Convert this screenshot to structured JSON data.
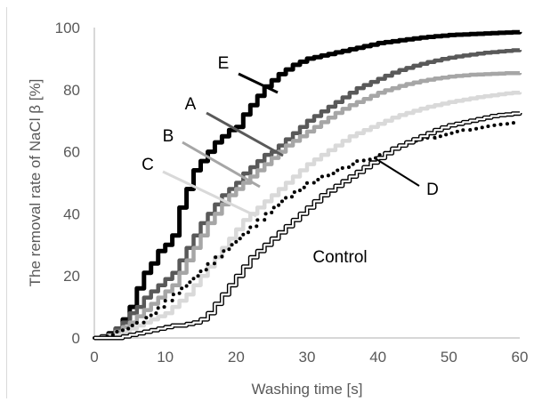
{
  "chart_data": {
    "type": "line",
    "title": "",
    "xlabel": "Washing time [s]",
    "ylabel": "The removal rate of NaCl β [%]",
    "xlim": [
      0,
      60
    ],
    "ylim": [
      0,
      100
    ],
    "x_ticks": [
      "0",
      "10",
      "20",
      "30",
      "40",
      "50",
      "60"
    ],
    "y_ticks": [
      "0",
      "20",
      "40",
      "60",
      "80",
      "100"
    ],
    "grid": false,
    "x": [
      0,
      1,
      2,
      3,
      4,
      5,
      6,
      7,
      8,
      9,
      10,
      11,
      12,
      13,
      14,
      15,
      16,
      17,
      18,
      19,
      20,
      21,
      22,
      23,
      24,
      25,
      26,
      27,
      28,
      29,
      30,
      31,
      32,
      33,
      34,
      35,
      36,
      37,
      38,
      39,
      40,
      41,
      42,
      43,
      44,
      45,
      46,
      47,
      48,
      49,
      50,
      51,
      52,
      53,
      54,
      55,
      56,
      57,
      58,
      59,
      60
    ],
    "series": [
      {
        "name": "E",
        "color": "#000000",
        "style": "solid-thick",
        "values": [
          0,
          0.5,
          1.5,
          3,
          6,
          10,
          16,
          21,
          24,
          28,
          30,
          33,
          42,
          48,
          54,
          57,
          60,
          63,
          65,
          67,
          68,
          72,
          75,
          78,
          81,
          83,
          85,
          86.5,
          88,
          89,
          90,
          90.5,
          91,
          91.5,
          92,
          92.5,
          93,
          93.5,
          94,
          94.5,
          95,
          95.3,
          95.6,
          95.9,
          96.2,
          96.5,
          96.8,
          97,
          97.2,
          97.4,
          97.6,
          97.7,
          97.8,
          97.9,
          98,
          98.1,
          98.2,
          98.3,
          98.4,
          98.5,
          98.6
        ]
      },
      {
        "name": "A",
        "color": "#595959",
        "style": "solid",
        "values": [
          0,
          0.3,
          1,
          3,
          5,
          8,
          10,
          13,
          15,
          17,
          19,
          21,
          25,
          29,
          33,
          37,
          40,
          43,
          46,
          48,
          50,
          53,
          55,
          57,
          59,
          60,
          62,
          64,
          66,
          68,
          70,
          71.5,
          73,
          74.5,
          76,
          77.5,
          79,
          80.5,
          81.5,
          82.5,
          83.5,
          84.5,
          85.5,
          86.3,
          87,
          87.7,
          88.3,
          88.9,
          89.4,
          89.9,
          90.3,
          90.7,
          91,
          91.3,
          91.6,
          91.9,
          92.1,
          92.3,
          92.5,
          92.7,
          92.8
        ]
      },
      {
        "name": "B",
        "color": "#a6a6a6",
        "style": "solid",
        "values": [
          0,
          0.2,
          0.8,
          2,
          3.5,
          5,
          7,
          9,
          11,
          13,
          15,
          17,
          21,
          25,
          29,
          33,
          37,
          40,
          43,
          46,
          48,
          50,
          52,
          54,
          56,
          58,
          60,
          62,
          63.5,
          65,
          66.5,
          68,
          69.5,
          71,
          72.5,
          73.8,
          75,
          76,
          77,
          78,
          79,
          79.8,
          80.5,
          81.2,
          81.8,
          82.3,
          82.8,
          83.2,
          83.6,
          83.9,
          84.2,
          84.4,
          84.6,
          84.8,
          84.9,
          85,
          85.1,
          85.2,
          85.3,
          85.3,
          85.4
        ]
      },
      {
        "name": "C",
        "color": "#d9d9d9",
        "style": "solid",
        "values": [
          0,
          0.2,
          0.5,
          1,
          2,
          3,
          4,
          5,
          6,
          7,
          8,
          10,
          12,
          14,
          17,
          20,
          23,
          26,
          29,
          32,
          35,
          38,
          40,
          42,
          44,
          46,
          48,
          50,
          52,
          54,
          56,
          57.5,
          59,
          60.5,
          62,
          63.5,
          65,
          66,
          67,
          68,
          69,
          70,
          71,
          71.8,
          72.5,
          73.2,
          73.9,
          74.5,
          75,
          75.5,
          76,
          76.4,
          76.8,
          77.2,
          77.6,
          77.9,
          78.2,
          78.5,
          78.8,
          79,
          79.2
        ]
      },
      {
        "name": "D",
        "color": "#000000",
        "style": "dotted",
        "values": [
          0,
          0.5,
          1,
          2,
          3,
          4,
          5,
          6.5,
          8,
          10,
          12,
          14,
          16,
          18,
          20,
          22,
          24,
          26,
          28,
          30,
          32,
          34,
          36,
          38,
          40,
          42,
          44,
          45.5,
          47,
          48.5,
          50,
          51,
          52,
          53,
          54,
          55,
          56,
          57,
          57.5,
          58,
          59,
          60,
          61,
          62,
          63,
          63.5,
          64,
          64.5,
          65,
          65.5,
          66,
          66.5,
          67,
          67.4,
          67.8,
          68.2,
          68.5,
          68.8,
          69,
          69.3,
          69.5
        ]
      },
      {
        "name": "Control",
        "color": "#000000",
        "style": "double",
        "values": [
          0,
          0,
          0,
          0,
          0.5,
          1,
          1.5,
          2,
          2.5,
          3,
          3.5,
          4,
          4,
          4.5,
          5,
          6,
          8,
          11,
          14,
          17,
          20,
          23,
          26,
          28,
          30,
          32,
          34,
          36,
          38,
          40,
          42,
          44,
          46,
          47.5,
          49,
          50.5,
          52,
          53.5,
          55,
          56.5,
          58,
          59.5,
          61,
          62,
          63,
          64,
          65,
          66,
          67,
          67.8,
          68.5,
          69,
          69.5,
          70,
          70.5,
          71,
          71.5,
          71.8,
          72,
          72.3,
          72.5
        ]
      }
    ],
    "annotations": [
      {
        "text": "E",
        "series": "E"
      },
      {
        "text": "A",
        "series": "A"
      },
      {
        "text": "B",
        "series": "B"
      },
      {
        "text": "C",
        "series": "C"
      },
      {
        "text": "D",
        "series": "D"
      },
      {
        "text": "Control",
        "series": "Control"
      }
    ]
  }
}
